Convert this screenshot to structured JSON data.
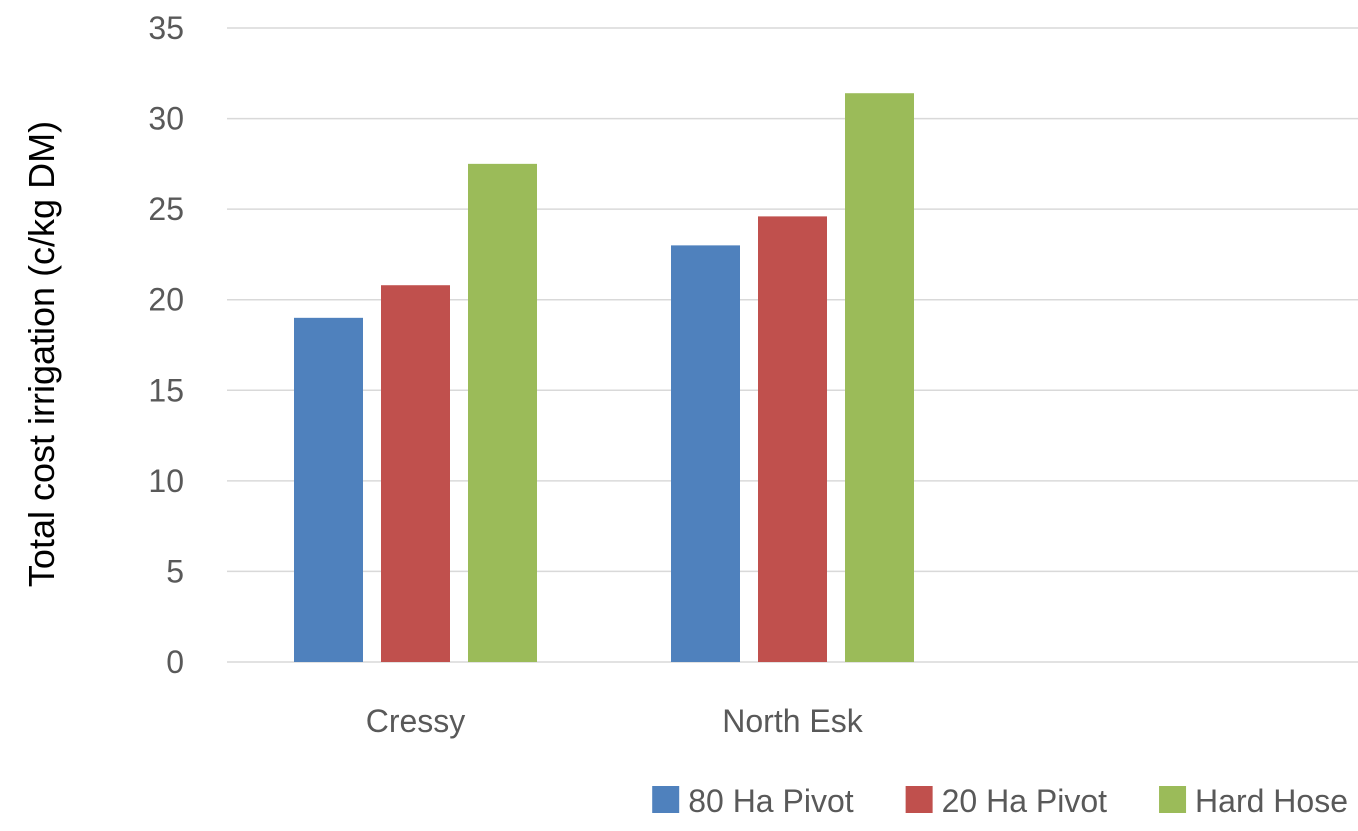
{
  "chart_data": {
    "type": "bar",
    "title": "",
    "xlabel": "",
    "ylabel": "Total cost irrigation (c/kg DM)",
    "categories": [
      "Cressy",
      "North Esk",
      ""
    ],
    "series": [
      {
        "name": "80 Ha Pivot",
        "values": [
          19.0,
          23.0,
          null
        ],
        "color": "#4f81bd"
      },
      {
        "name": "20 Ha Pivot",
        "values": [
          20.8,
          24.6,
          null
        ],
        "color": "#c0504d"
      },
      {
        "name": "Hard Hose",
        "values": [
          27.5,
          31.4,
          null
        ],
        "color": "#9bbb59"
      }
    ],
    "ylim": [
      0,
      35
    ],
    "yticks": [
      0,
      5,
      10,
      15,
      20,
      25,
      30,
      35
    ],
    "grid": true,
    "legend": "bottom-right"
  }
}
